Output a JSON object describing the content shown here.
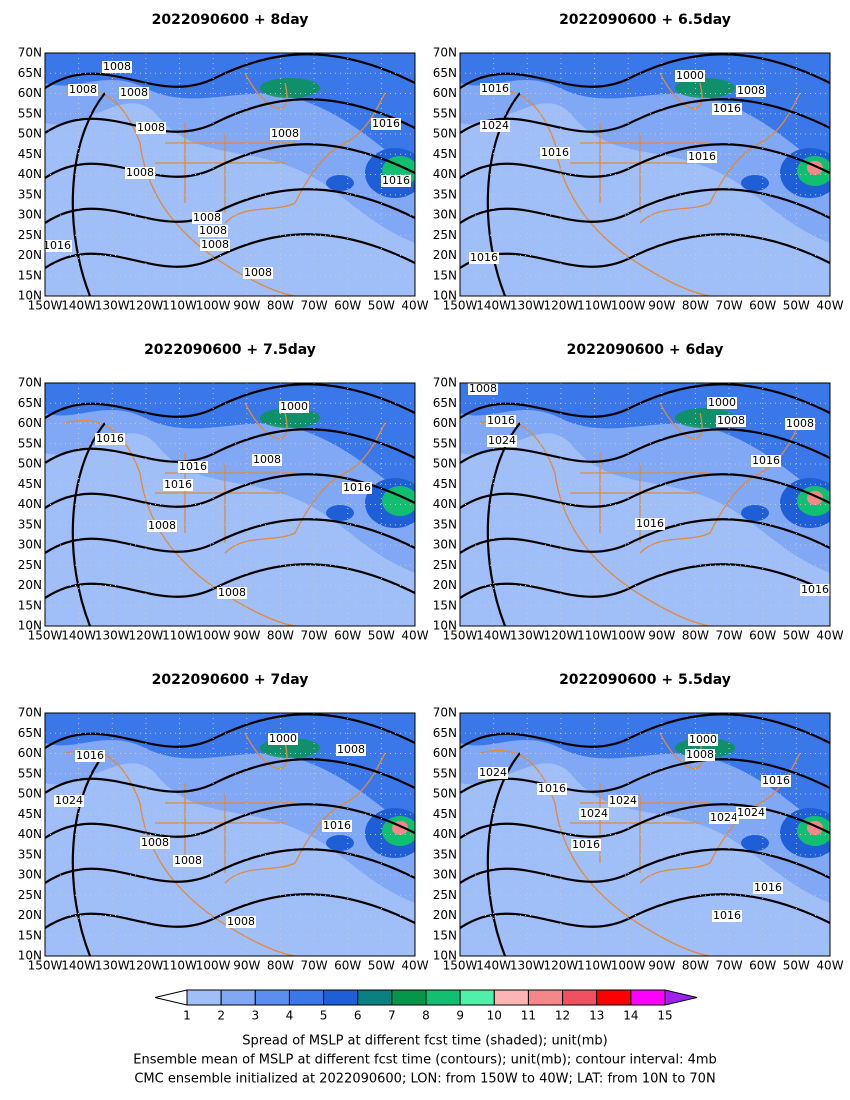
{
  "panels": [
    {
      "title": "2022090600 + 8day",
      "contour_labels": [
        "1008",
        "1008",
        "1008",
        "1008",
        "1008",
        "1016",
        "1016",
        "1008",
        "1008",
        "1008",
        "1008",
        "1008",
        "1016"
      ]
    },
    {
      "title": "2022090600 + 6.5day",
      "contour_labels": [
        "1000",
        "1016",
        "1008",
        "1016",
        "1024",
        "1016",
        "1016",
        "1016"
      ]
    },
    {
      "title": "2022090600 + 7.5day",
      "contour_labels": [
        "1016",
        "1016",
        "1016",
        "1008",
        "1000",
        "1016",
        "1008",
        "1008"
      ]
    },
    {
      "title": "2022090600 + 6day",
      "contour_labels": [
        "1008",
        "1016",
        "1024",
        "1000",
        "1008",
        "1008",
        "1016",
        "1016",
        "1016"
      ]
    },
    {
      "title": "2022090600 + 7day",
      "contour_labels": [
        "1016",
        "1000",
        "1008",
        "1024",
        "1016",
        "1008",
        "1008",
        "1008"
      ]
    },
    {
      "title": "2022090600 + 5.5day",
      "contour_labels": [
        "1000",
        "1008",
        "1024",
        "1016",
        "1016",
        "1024",
        "1024",
        "1024",
        "1024",
        "1016",
        "1016",
        "1016"
      ]
    }
  ],
  "lat_labels": [
    "70N",
    "65N",
    "60N",
    "55N",
    "50N",
    "45N",
    "40N",
    "35N",
    "30N",
    "25N",
    "20N",
    "15N",
    "10N"
  ],
  "lon_labels": [
    "150W",
    "140W",
    "130W",
    "120W",
    "110W",
    "100W",
    "90W",
    "80W",
    "70W",
    "60W",
    "50W",
    "40W"
  ],
  "colorbar": {
    "labels": [
      1,
      2,
      3,
      4,
      5,
      6,
      7,
      8,
      9,
      10,
      11,
      12,
      13,
      14,
      15
    ],
    "colors": [
      "#ffffff",
      "#a0bff8",
      "#80a8f4",
      "#5a8ff0",
      "#3a78ea",
      "#1e5fd8",
      "#0a8080",
      "#06964a",
      "#10c070",
      "#50f0a8",
      "#ffb4b4",
      "#f48888",
      "#f05060",
      "#ff0000",
      "#ff00ff",
      "#a020f0"
    ]
  },
  "caption": [
    "Spread of MSLP at different fcst time (shaded); unit(mb)",
    "Ensemble mean of MSLP at different fcst time (contours); unit(mb); contour interval: 4mb",
    "CMC ensemble initialized at 2022090600; LON: from 150W to 40W; LAT: from 10N to 70N"
  ]
}
